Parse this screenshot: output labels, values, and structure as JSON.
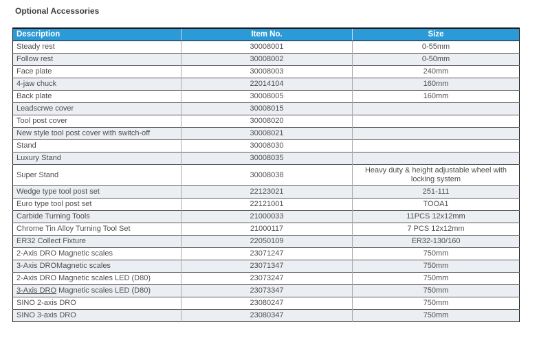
{
  "page": {
    "title": "Optional Accessories"
  },
  "colors": {
    "header_bg": "#2d9ad8",
    "header_text": "#ffffff",
    "row_alt_bg": "#ebeef2",
    "row_text": "#4e4e4e",
    "outer_border": "#1c1c1c"
  },
  "table": {
    "columns": [
      {
        "label": "Description",
        "align": "left"
      },
      {
        "label": "Item No.",
        "align": "center"
      },
      {
        "label": "Size",
        "align": "center"
      }
    ],
    "rows": [
      {
        "description": "Steady rest",
        "item_no": "30008001",
        "size": "0-55mm"
      },
      {
        "description": "Follow rest",
        "item_no": "30008002",
        "size": "0-50mm"
      },
      {
        "description": "Face plate",
        "item_no": "30008003",
        "size": "240mm"
      },
      {
        "description": "4-jaw chuck",
        "item_no": "22014104",
        "size": "160mm"
      },
      {
        "description": "Back plate",
        "item_no": "30008005",
        "size": "160mm"
      },
      {
        "description": "Leadscrwe cover",
        "item_no": "30008015",
        "size": ""
      },
      {
        "description": "Tool post cover",
        "item_no": "30008020",
        "size": ""
      },
      {
        "description": "New style tool post cover with switch-off",
        "item_no": "30008021",
        "size": ""
      },
      {
        "description": "Stand",
        "item_no": "30008030",
        "size": ""
      },
      {
        "description": "Luxury Stand",
        "item_no": "30008035",
        "size": ""
      },
      {
        "description": "Super Stand",
        "item_no": "30008038",
        "size": "Heavy duty & height adjustable wheel with locking system"
      },
      {
        "description": "Wedge type tool post set",
        "item_no": "22123021",
        "size": "251-111"
      },
      {
        "description": "Euro type tool post set",
        "item_no": "22121001",
        "size": "TOOA1"
      },
      {
        "description": "Carbide Turning Tools",
        "item_no": "21000033",
        "size": "11PCS 12x12mm"
      },
      {
        "description": "Chrome Tin Alloy Turning Tool Set",
        "item_no": "21000117",
        "size": "7 PCS 12x12mm"
      },
      {
        "description": "ER32 Collect Fixture",
        "item_no": "22050109",
        "size": "ER32-130/160"
      },
      {
        "description": "2-Axis DRO Magnetic scales",
        "item_no": "23071247",
        "size": "750mm"
      },
      {
        "description": "3-Axis DROMagnetic scales",
        "item_no": "23071347",
        "size": "750mm"
      },
      {
        "description": "2-Axis DRO Magnetic scales LED (D80)",
        "item_no": "23073247",
        "size": "750mm"
      },
      {
        "description": "3-Axis DRO Magnetic scales LED (D80)",
        "item_no": "23073347",
        "size": "750mm",
        "underline_prefix": "3-Axis DRO"
      },
      {
        "description": "SINO 2-axis DRO",
        "item_no": "23080247",
        "size": "750mm"
      },
      {
        "description": "SINO 3-axis DRO",
        "item_no": "23080347",
        "size": "750mm"
      }
    ]
  }
}
